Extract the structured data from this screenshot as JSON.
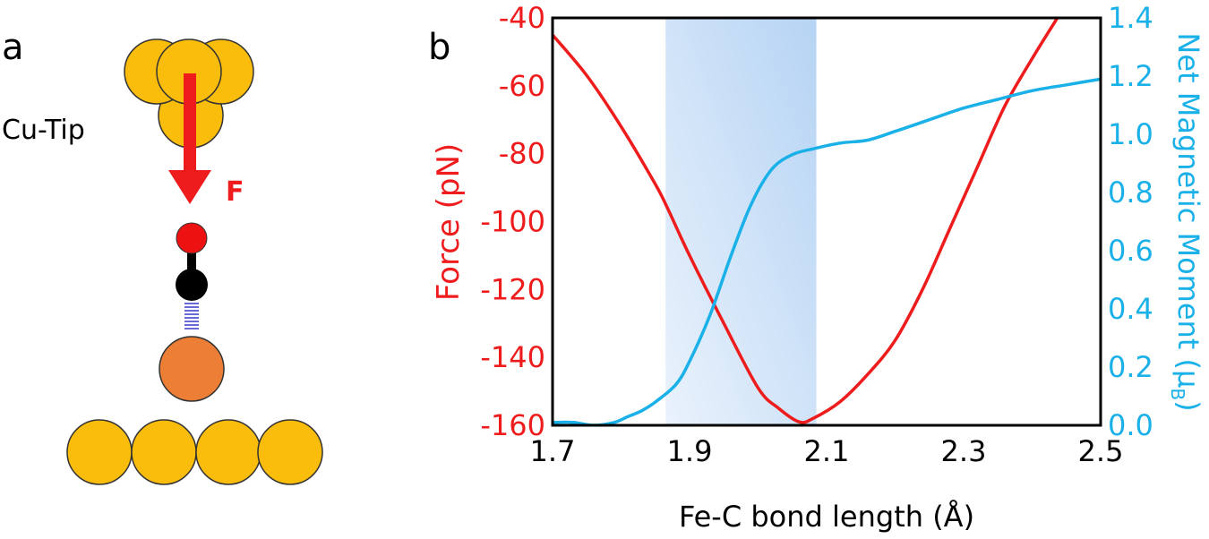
{
  "panel_a": {
    "label": "a",
    "tip_label": "Cu-Tip",
    "force_label": "F"
  },
  "panel_b": {
    "label": "b"
  },
  "colors": {
    "force": "#ee1c1c",
    "moment": "#1ab0e8",
    "highlight": "#a9ccf2",
    "cu_atom": "#fbbd0b",
    "fe_atom": "#ec7f35",
    "oxygen": "#ee1111",
    "carbon": "#000000",
    "bond_dash": "#3535c8"
  },
  "chart_data": {
    "type": "line",
    "xlabel": "Fe-C bond length (Å)",
    "ylabel": "Force (pN)",
    "y2label": "Net Magnetic Moment (μB)",
    "y2label_main": "Net Magnetic Moment (μ",
    "y2label_sub": "B",
    "y2label_close": ")",
    "xlim": [
      1.7,
      2.5
    ],
    "ylim": [
      -160,
      -40
    ],
    "y2lim": [
      0.0,
      1.4
    ],
    "xticks": [
      "1.7",
      "1.9",
      "2.1",
      "2.3",
      "2.5"
    ],
    "xtick_values": [
      1.7,
      1.9,
      2.1,
      2.3,
      2.5
    ],
    "yticks": [
      "-40",
      "-60",
      "-80",
      "-100",
      "-120",
      "-140",
      "-160"
    ],
    "ytick_values": [
      -40,
      -60,
      -80,
      -100,
      -120,
      -140,
      -160
    ],
    "y2ticks": [
      "1.4",
      "1.2",
      "1.0",
      "0.8",
      "0.6",
      "0.4",
      "0.2",
      "0.0"
    ],
    "y2tick_values": [
      1.4,
      1.2,
      1.0,
      0.8,
      0.6,
      0.4,
      0.2,
      0.0
    ],
    "highlight_range": [
      1.865,
      2.085
    ],
    "grid": false,
    "series": [
      {
        "axis": "left",
        "x": [
          1.7,
          1.75,
          1.8,
          1.85,
          1.87,
          1.9,
          1.95,
          2.0,
          2.03,
          2.06,
          2.08,
          2.12,
          2.16,
          2.2,
          2.24,
          2.28,
          2.32,
          2.36,
          2.4,
          2.44
        ],
        "values": [
          -45,
          -57,
          -72,
          -89,
          -97,
          -110,
          -130,
          -149,
          -155,
          -159,
          -158,
          -153,
          -145,
          -135,
          -120,
          -102,
          -84,
          -66,
          -52,
          -39
        ]
      },
      {
        "axis": "right",
        "x": [
          1.7,
          1.73,
          1.76,
          1.79,
          1.81,
          1.83,
          1.85,
          1.88,
          1.9,
          1.93,
          1.96,
          1.99,
          2.02,
          2.05,
          2.08,
          2.12,
          2.16,
          2.2,
          2.25,
          2.3,
          2.35,
          2.4,
          2.45,
          2.5
        ],
        "values": [
          0.01,
          0.01,
          0.0,
          0.01,
          0.03,
          0.05,
          0.08,
          0.14,
          0.22,
          0.38,
          0.58,
          0.76,
          0.88,
          0.93,
          0.95,
          0.97,
          0.98,
          1.01,
          1.05,
          1.09,
          1.12,
          1.15,
          1.17,
          1.19
        ]
      }
    ]
  }
}
